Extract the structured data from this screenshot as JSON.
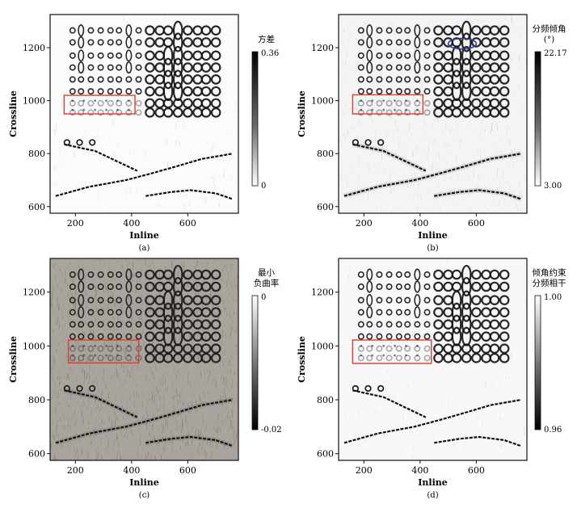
{
  "figure": {
    "panels": [
      {
        "id": "a",
        "caption": "(a)",
        "xlabel": "Inline",
        "ylabel": "Crossline",
        "x_ticks": [
          "200",
          "400",
          "600"
        ],
        "y_ticks": [
          "600",
          "800",
          "1000",
          "1200"
        ],
        "xlim": [
          110,
          780
        ],
        "ylim": [
          575,
          1325
        ],
        "colorbar": {
          "label_lines": [
            "方差"
          ],
          "top_value": "0.36",
          "bottom_value": "0",
          "dark_at": "top"
        },
        "background": "#fbfbfb",
        "noise": "low",
        "annotations": [
          {
            "shape": "rectangle",
            "color": "#e03a2a",
            "x_range": [
              160,
              412
            ],
            "y_range": [
              950,
              1020
            ]
          }
        ]
      },
      {
        "id": "b",
        "caption": "(b)",
        "xlabel": "Inline",
        "ylabel": "Crossline",
        "x_ticks": [
          "200",
          "400",
          "600"
        ],
        "y_ticks": [
          "600",
          "800",
          "1000",
          "1200"
        ],
        "xlim": [
          110,
          780
        ],
        "ylim": [
          575,
          1325
        ],
        "colorbar": {
          "label_lines": [
            "分频倾角",
            "(°)"
          ],
          "top_value": "22.17",
          "bottom_value": "3.00",
          "dark_at": "top"
        },
        "background": "#f4f4f4",
        "noise": "medium",
        "annotations": [
          {
            "shape": "rectangle",
            "color": "#e03a2a",
            "x_range": [
              160,
              410
            ],
            "y_range": [
              950,
              1022
            ]
          },
          {
            "shape": "ellipse",
            "color": "#2c3f9c",
            "center": [
              550,
              1215
            ],
            "radius": [
              50,
              20
            ]
          }
        ]
      },
      {
        "id": "c",
        "caption": "(c)",
        "xlabel": "Inline",
        "ylabel": "Crossline",
        "x_ticks": [
          "200",
          "400",
          "600"
        ],
        "y_ticks": [
          "600",
          "800",
          "1000",
          "1200"
        ],
        "xlim": [
          110,
          780
        ],
        "ylim": [
          575,
          1325
        ],
        "colorbar": {
          "label_lines": [
            "最小",
            "负曲率"
          ],
          "top_value": "0",
          "bottom_value": "-0.02",
          "dark_at": "bottom"
        },
        "background": "#aaa49e",
        "noise": "heavy",
        "annotations": [
          {
            "shape": "rectangle",
            "color": "#e03a2a",
            "x_range": [
              175,
              425
            ],
            "y_range": [
              937,
              1022
            ]
          }
        ]
      },
      {
        "id": "d",
        "caption": "(d)",
        "xlabel": "Inline",
        "ylabel": "Crossline",
        "x_ticks": [
          "200",
          "400",
          "600"
        ],
        "y_ticks": [
          "600",
          "800",
          "1000",
          "1200"
        ],
        "xlim": [
          110,
          780
        ],
        "ylim": [
          575,
          1325
        ],
        "colorbar": {
          "label_lines": [
            "倾角约束",
            "分频相干"
          ],
          "top_value": "1.00",
          "bottom_value": "0.96",
          "dark_at": "bottom"
        },
        "background": "#f8f8f8",
        "noise": "low",
        "annotations": [
          {
            "shape": "rectangle",
            "color": "#e03a2a",
            "x_range": [
              160,
              440
            ],
            "y_range": [
              935,
              1022
            ]
          }
        ]
      }
    ],
    "features": {
      "ring_columns": [
        190,
        220,
        255,
        290,
        325,
        355,
        390,
        425,
        465,
        500,
        530,
        565,
        600,
        635,
        665,
        700
      ],
      "ring_rows": [
        1265,
        1220,
        1170,
        1125,
        1080,
        1035,
        990,
        955
      ],
      "channels": [
        {
          "name": "channel-a",
          "points": [
            [
              160,
              835
            ],
            [
              270,
              810
            ],
            [
              330,
              780
            ],
            [
              420,
              735
            ]
          ]
        },
        {
          "name": "channel-b",
          "points": [
            [
              130,
              640
            ],
            [
              250,
              675
            ],
            [
              380,
              700
            ],
            [
              470,
              725
            ],
            [
              560,
              752
            ],
            [
              650,
              780
            ],
            [
              760,
              800
            ]
          ]
        },
        {
          "name": "channel-c",
          "points": [
            [
              450,
              640
            ],
            [
              540,
              655
            ],
            [
              610,
              662
            ],
            [
              700,
              650
            ],
            [
              760,
              628
            ]
          ]
        }
      ]
    }
  }
}
